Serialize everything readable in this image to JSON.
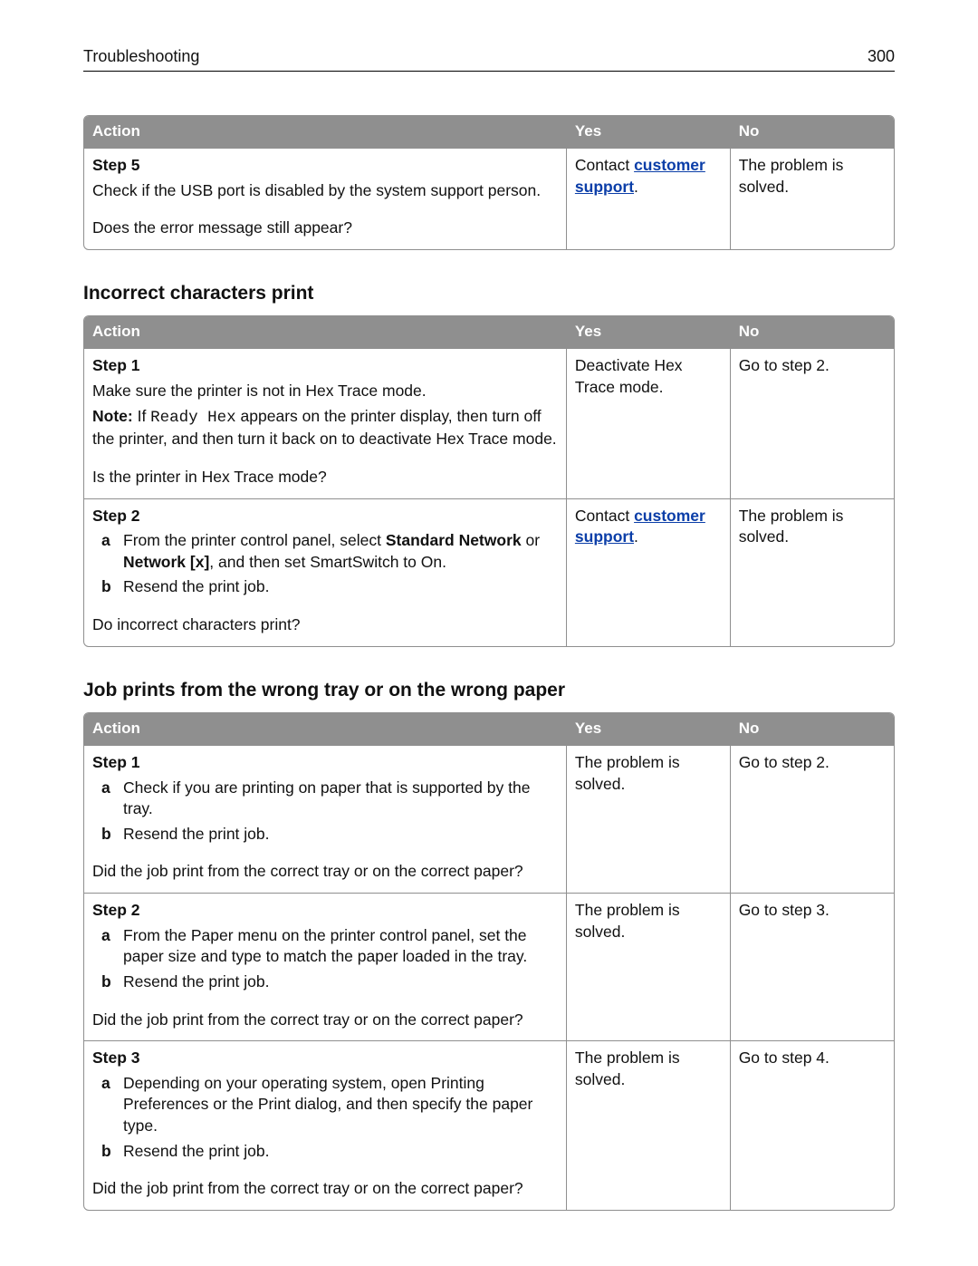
{
  "header": {
    "title": "Troubleshooting",
    "page_number": "300"
  },
  "colors": {
    "header_bg": "#8f8f8f",
    "header_fg": "#ffffff",
    "border": "#8f8f8f",
    "link": "#0b3ea8",
    "text": "#111111",
    "page_bg": "#ffffff"
  },
  "columns": {
    "action": "Action",
    "yes": "Yes",
    "no": "No"
  },
  "table1": {
    "rows": [
      {
        "step": "Step 5",
        "body": "Check if the USB port is disabled by the system support person.",
        "question": "Does the error message still appear?",
        "yes_pre": "Contact ",
        "yes_link": "customer support",
        "yes_post": ".",
        "no": "The problem is solved."
      }
    ]
  },
  "section2_title": "Incorrect characters print",
  "table2": {
    "rows": [
      {
        "step": "Step 1",
        "body": "Make sure the printer is not in Hex Trace mode.",
        "note_label": "Note:",
        "note_pre": " If ",
        "note_code": "Ready Hex",
        "note_post": " appears on the printer display, then turn off the printer, and then turn it back on to deactivate Hex Trace mode.",
        "question": "Is the printer in Hex Trace mode?",
        "yes": "Deactivate Hex Trace mode.",
        "no": "Go to step 2."
      },
      {
        "step": "Step 2",
        "sub_a_pre": "From the printer control panel, select ",
        "sub_a_bold1": "Standard Network",
        "sub_a_mid": " or ",
        "sub_a_bold2": "Network [x]",
        "sub_a_post": ", and then set SmartSwitch to On.",
        "sub_b": "Resend the print job.",
        "question": "Do incorrect characters print?",
        "yes_pre": "Contact ",
        "yes_link": "customer support",
        "yes_post": ".",
        "no": "The problem is solved."
      }
    ]
  },
  "section3_title": "Job prints from the wrong tray or on the wrong paper",
  "table3": {
    "rows": [
      {
        "step": "Step 1",
        "sub_a": "Check if you are printing on paper that is supported by the tray.",
        "sub_b": "Resend the print job.",
        "question": "Did the job print from the correct tray or on the correct paper?",
        "yes": "The problem is solved.",
        "no": "Go to step 2."
      },
      {
        "step": "Step 2",
        "sub_a": "From the Paper menu on the printer control panel, set the paper size and type to match the paper loaded in the tray.",
        "sub_b": "Resend the print job.",
        "question": "Did the job print from the correct tray or on the correct paper?",
        "yes": "The problem is solved.",
        "no": "Go to step 3."
      },
      {
        "step": "Step 3",
        "sub_a": "Depending on your operating system, open Printing Preferences or the Print dialog, and then specify the paper type.",
        "sub_b": "Resend the print job.",
        "question": "Did the job print from the correct tray or on the correct paper?",
        "yes": "The problem is solved.",
        "no": "Go to step 4."
      }
    ]
  },
  "list_markers": {
    "a": "a",
    "b": "b"
  }
}
